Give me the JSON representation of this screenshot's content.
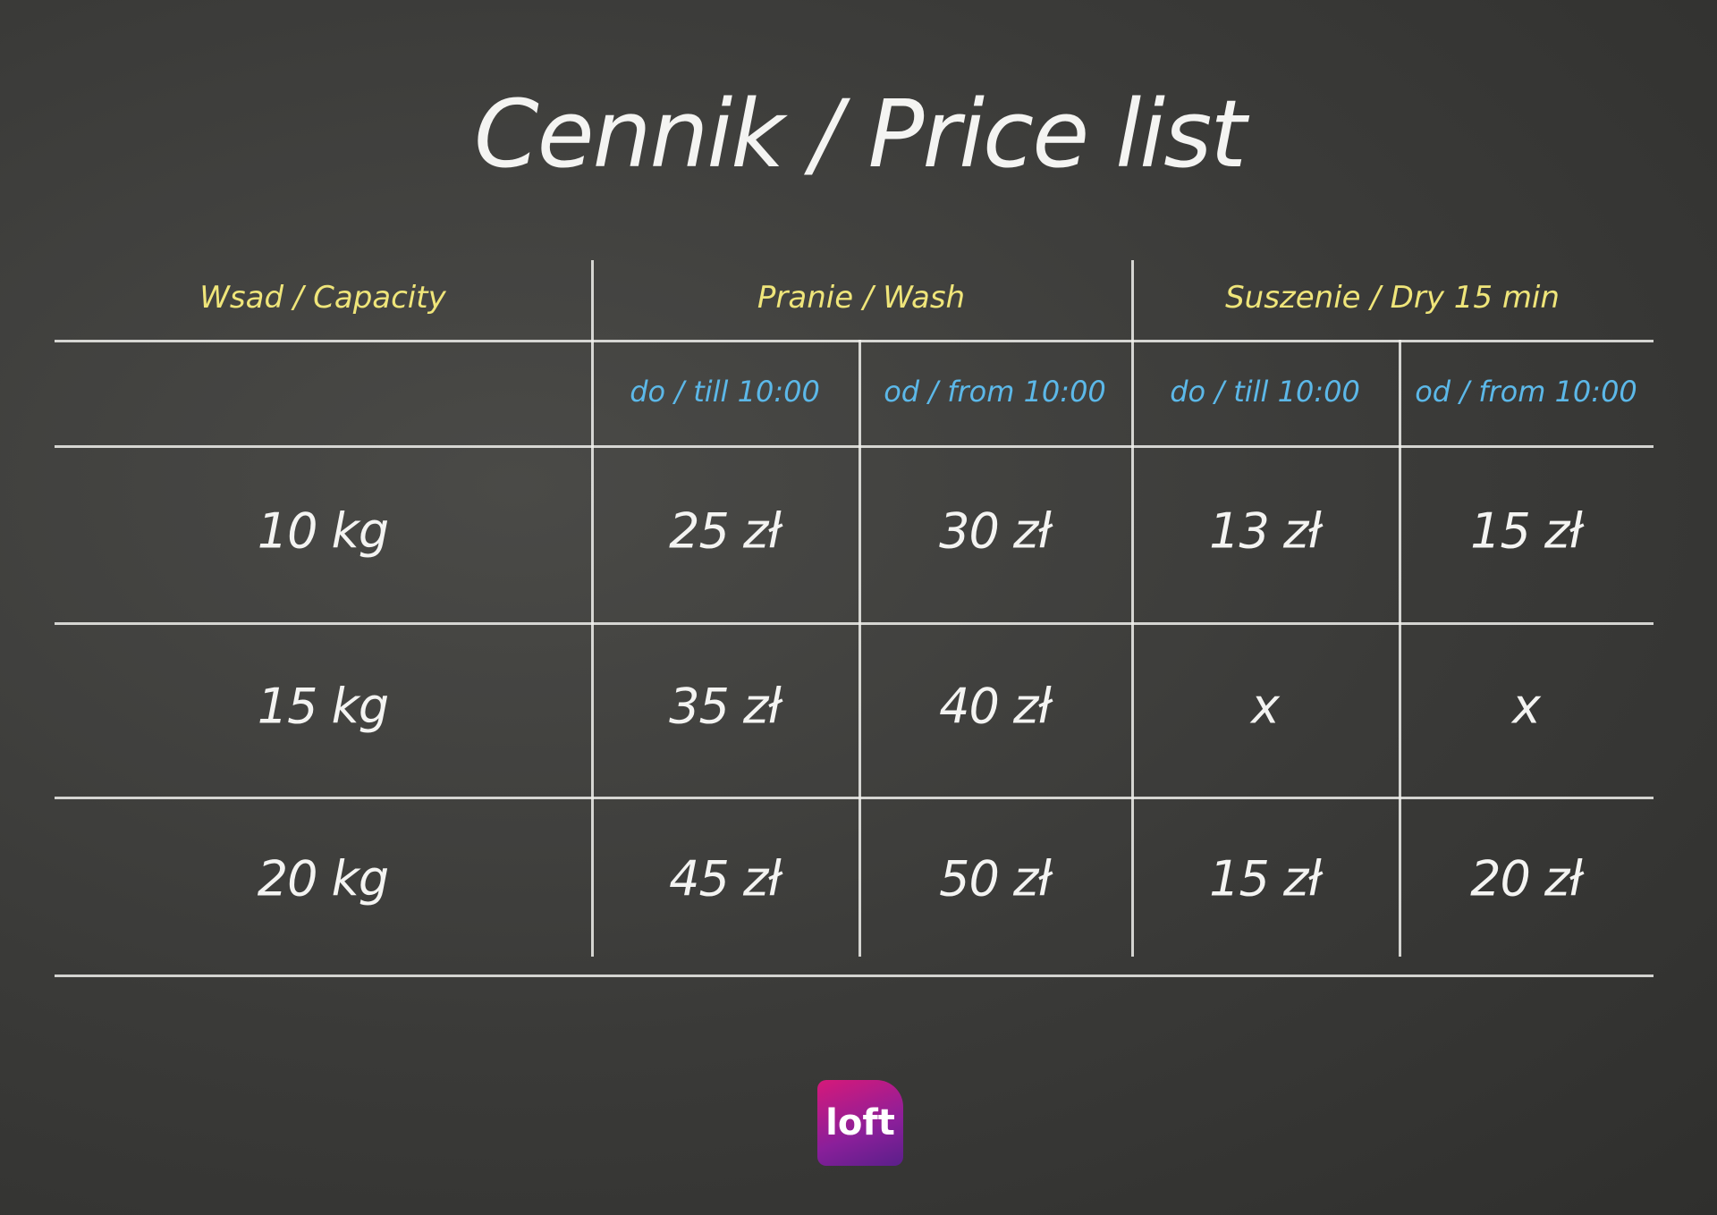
{
  "title": "Cennik / Price list",
  "table": {
    "headers": [
      "Wsad / Capacity",
      "Pranie / Wash",
      "Suszenie / Dry 15 min"
    ],
    "subheaders": [
      "do / till 10:00",
      "od / from 10:00",
      "do / till 10:00",
      "od / from 10:00"
    ],
    "rows": [
      [
        "10 kg",
        "25 zł",
        "30 zł",
        "13 zł",
        "15 zł"
      ],
      [
        "15 kg",
        "35 zł",
        "40 zł",
        "x",
        "x"
      ],
      [
        "20 kg",
        "45 zł",
        "50 zł",
        "15 zł",
        "20 zł"
      ]
    ]
  },
  "logo": "loft"
}
